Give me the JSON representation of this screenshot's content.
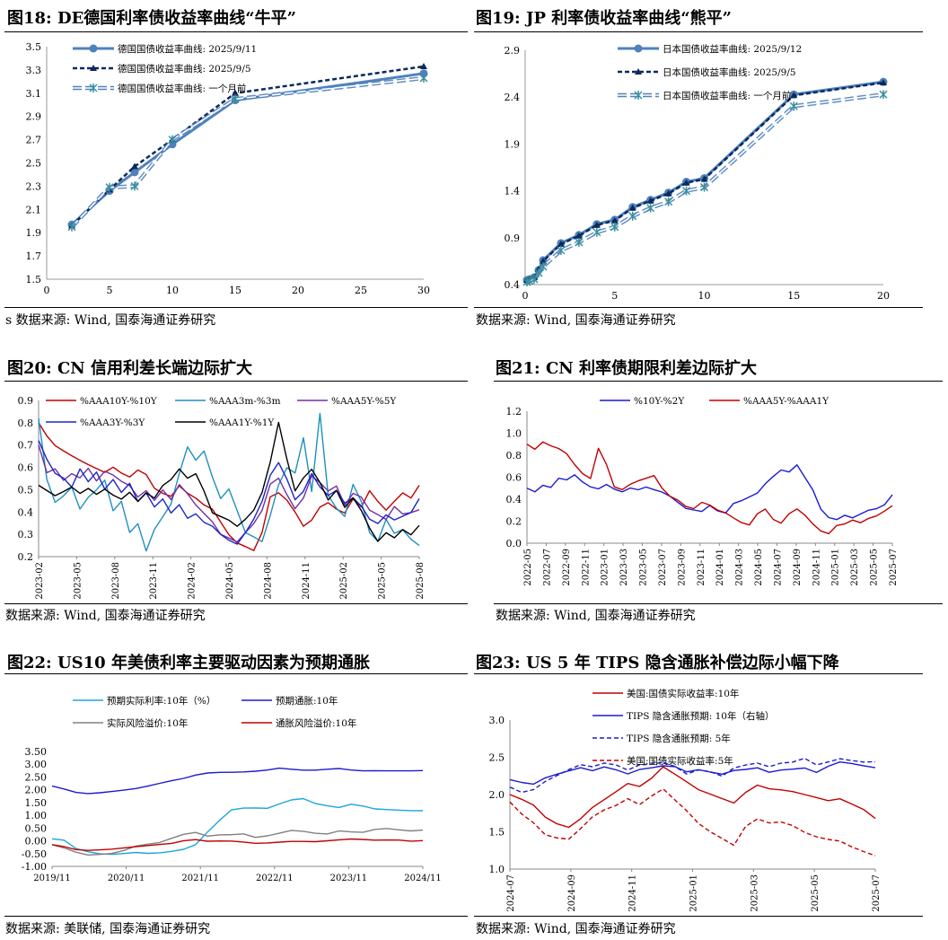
{
  "panels": {
    "fig18": {
      "title": "图18:  DE德国利率债收益率曲线“牛平”",
      "source": "s 数据来源:  Wind, 国泰海通证券研究"
    },
    "fig19": {
      "title": "图19:  JP 利率债收益率曲线“熊平”",
      "source": "数据来源:  Wind, 国泰海通证券研究"
    },
    "fig20": {
      "title": "图20:  CN 信用利差长端边际扩大",
      "source": "数据来源:  Wind, 国泰海通证券研究"
    },
    "fig21": {
      "title": "图21:  CN 利率债期限利差边际扩大",
      "source": "数据来源:  Wind, 国泰海通证券研究"
    },
    "fig22": {
      "title": "图22:  US10 年美债利率主要驱动因素为预期通胀",
      "source": "数据来源:  美联储, 国泰海通证券研究"
    },
    "fig23": {
      "title": "图23:  US 5 年 TIPS 隐含通胀补偿边际小幅下降",
      "source": "数据来源:  Wind, 国泰海通证券研究"
    }
  },
  "chart_data": [
    {
      "id": "fig18",
      "type": "line",
      "xlim": [
        0,
        30
      ],
      "ylim": [
        1.5,
        3.5
      ],
      "xticks": [
        "0",
        "5",
        "10",
        "15",
        "20",
        "25",
        "30"
      ],
      "yticks": [
        "1.5",
        "1.7",
        "1.9",
        "2.1",
        "2.3",
        "2.5",
        "2.7",
        "2.9",
        "3.1",
        "3.3",
        "3.5"
      ],
      "series": [
        {
          "name": "德国国债收益率曲线: 2025/9/11",
          "color": "#4f81bd",
          "x": [
            2,
            5,
            7,
            10,
            15,
            30
          ],
          "y": [
            1.97,
            2.26,
            2.42,
            2.66,
            3.04,
            3.27
          ]
        },
        {
          "name": "德国国债收益率曲线: 2025/9/5",
          "color": "#0b2a5b",
          "x": [
            2,
            5,
            7,
            10,
            15,
            30
          ],
          "y": [
            1.96,
            2.27,
            2.47,
            2.7,
            3.1,
            3.33
          ]
        },
        {
          "name": "德国国债收益率曲线: 一个月前",
          "color": "#4f81bd",
          "x": [
            2,
            5,
            7,
            10,
            15,
            30
          ],
          "y": [
            1.95,
            2.29,
            2.3,
            2.7,
            3.05,
            3.23
          ]
        }
      ]
    },
    {
      "id": "fig19",
      "type": "line",
      "xlim": [
        0,
        20
      ],
      "ylim": [
        0.4,
        3.0
      ],
      "xticks": [
        "0",
        "5",
        "10",
        "15",
        "20"
      ],
      "yticks": [
        "0.4",
        "0.9",
        "1.4",
        "1.9",
        "2.4",
        "2.9"
      ],
      "series": [
        {
          "name": "日本国债收益率曲线: 2025/9/12",
          "color": "#4f81bd",
          "x": [
            0.1,
            0.25,
            0.5,
            0.75,
            1,
            2,
            3,
            4,
            5,
            6,
            7,
            8,
            9,
            10,
            15,
            20
          ],
          "y": [
            0.45,
            0.46,
            0.48,
            0.56,
            0.67,
            0.86,
            0.95,
            1.07,
            1.12,
            1.26,
            1.34,
            1.42,
            1.54,
            1.58,
            2.51,
            2.65
          ]
        },
        {
          "name": "日本国债收益率曲线: 2025/9/5",
          "color": "#0b2a5b",
          "x": [
            0.1,
            0.25,
            0.5,
            0.75,
            1,
            2,
            3,
            4,
            5,
            6,
            7,
            8,
            9,
            10,
            15,
            20
          ],
          "y": [
            0.45,
            0.46,
            0.48,
            0.57,
            0.66,
            0.85,
            0.94,
            1.06,
            1.11,
            1.25,
            1.33,
            1.41,
            1.53,
            1.57,
            2.5,
            2.64
          ]
        },
        {
          "name": "日本国债收益率曲线: 一个月前",
          "color": "#4f81bd",
          "x": [
            0.1,
            0.25,
            0.5,
            0.75,
            1,
            2,
            3,
            4,
            5,
            6,
            7,
            8,
            9,
            10,
            15,
            20
          ],
          "y": [
            0.43,
            0.44,
            0.46,
            0.53,
            0.6,
            0.78,
            0.87,
            0.98,
            1.04,
            1.16,
            1.25,
            1.32,
            1.44,
            1.48,
            2.38,
            2.51
          ]
        }
      ]
    },
    {
      "id": "fig20",
      "type": "line",
      "ylim": [
        0.2,
        0.9
      ],
      "yticks": [
        "0.2",
        "0.3",
        "0.4",
        "0.5",
        "0.6",
        "0.7",
        "0.8",
        "0.9"
      ],
      "xticks": [
        "2023-02",
        "2023-05",
        "2023-08",
        "2023-11",
        "2024-02",
        "2024-05",
        "2024-08",
        "2024-11",
        "2025-02",
        "2025-05",
        "2025-08"
      ],
      "xstart": "2023-02",
      "xend": "2025-09",
      "series": [
        {
          "name": "%AAA10Y-%10Y",
          "color": "#c00000",
          "y": [
            0.8,
            0.74,
            0.7,
            0.68,
            0.66,
            0.64,
            0.62,
            0.6,
            0.58,
            0.6,
            0.57,
            0.55,
            0.58,
            0.56,
            0.5,
            0.48,
            0.47,
            0.52,
            0.49,
            0.47,
            0.44,
            0.42,
            0.36,
            0.3,
            0.26,
            0.24,
            0.22,
            0.3,
            0.46,
            0.48,
            0.45,
            0.4,
            0.34,
            0.37,
            0.43,
            0.45,
            0.42,
            0.4,
            0.46,
            0.42,
            0.49,
            0.44,
            0.4,
            0.44,
            0.48,
            0.46,
            0.52
          ]
        },
        {
          "name": "%AAA3m-%3m",
          "color": "#1f8fc0",
          "y": [
            0.82,
            0.55,
            0.45,
            0.48,
            0.52,
            0.42,
            0.47,
            0.5,
            0.54,
            0.4,
            0.44,
            0.3,
            0.34,
            0.22,
            0.32,
            0.38,
            0.44,
            0.58,
            0.7,
            0.64,
            0.68,
            0.56,
            0.46,
            0.5,
            0.4,
            0.3,
            0.28,
            0.26,
            0.38,
            0.52,
            0.6,
            0.58,
            0.74,
            0.5,
            0.85,
            0.48,
            0.42,
            0.38,
            0.52,
            0.44,
            0.3,
            0.26,
            0.36,
            0.3,
            0.32,
            0.28,
            0.25
          ]
        },
        {
          "name": "%AAA5Y-%5Y",
          "color": "#7030a0",
          "y": [
            0.7,
            0.58,
            0.6,
            0.55,
            0.58,
            0.56,
            0.6,
            0.54,
            0.58,
            0.56,
            0.53,
            0.51,
            0.46,
            0.49,
            0.45,
            0.5,
            0.46,
            0.53,
            0.49,
            0.44,
            0.4,
            0.36,
            0.3,
            0.28,
            0.26,
            0.3,
            0.34,
            0.4,
            0.52,
            0.55,
            0.48,
            0.42,
            0.47,
            0.57,
            0.54,
            0.5,
            0.52,
            0.43,
            0.48,
            0.46,
            0.4,
            0.38,
            0.36,
            0.42,
            0.39,
            0.4,
            0.41
          ]
        },
        {
          "name": "%AAA3Y-%3Y",
          "color": "#1d24c8",
          "y": [
            0.72,
            0.64,
            0.58,
            0.56,
            0.52,
            0.6,
            0.54,
            0.58,
            0.5,
            0.54,
            0.48,
            0.52,
            0.44,
            0.48,
            0.42,
            0.46,
            0.4,
            0.44,
            0.38,
            0.4,
            0.36,
            0.34,
            0.3,
            0.27,
            0.25,
            0.3,
            0.36,
            0.44,
            0.56,
            0.62,
            0.55,
            0.46,
            0.5,
            0.58,
            0.52,
            0.48,
            0.5,
            0.44,
            0.46,
            0.42,
            0.36,
            0.34,
            0.38,
            0.36,
            0.38,
            0.4,
            0.46
          ]
        },
        {
          "name": "%AAA1Y-%1Y",
          "color": "#000000",
          "y": [
            0.52,
            0.5,
            0.48,
            0.5,
            0.52,
            0.49,
            0.51,
            0.48,
            0.5,
            0.47,
            0.45,
            0.48,
            0.44,
            0.48,
            0.46,
            0.52,
            0.55,
            0.6,
            0.56,
            0.58,
            0.5,
            0.4,
            0.38,
            0.36,
            0.33,
            0.36,
            0.4,
            0.48,
            0.62,
            0.8,
            0.64,
            0.5,
            0.56,
            0.6,
            0.54,
            0.46,
            0.5,
            0.42,
            0.46,
            0.4,
            0.32,
            0.26,
            0.3,
            0.28,
            0.32,
            0.3,
            0.34
          ]
        }
      ]
    },
    {
      "id": "fig21",
      "type": "line",
      "ylim": [
        0.0,
        1.2
      ],
      "yticks": [
        "0.0",
        "0.2",
        "0.4",
        "0.6",
        "0.8",
        "1.0",
        "1.2"
      ],
      "xticks": [
        "2022-05",
        "2022-07",
        "2022-09",
        "2022-11",
        "2023-01",
        "2023-03",
        "2023-05",
        "2023-07",
        "2023-09",
        "2023-11",
        "2024-01",
        "2024-03",
        "2024-05",
        "2024-07",
        "2024-09",
        "2024-11",
        "2025-01",
        "2025-03",
        "2025-05",
        "2025-07"
      ],
      "xstart": "2022-05",
      "xend": "2025-09",
      "series": [
        {
          "name": "%10Y-%2Y",
          "color": "#1a1ad6",
          "y": [
            0.5,
            0.48,
            0.54,
            0.52,
            0.6,
            0.58,
            0.62,
            0.55,
            0.5,
            0.48,
            0.52,
            0.48,
            0.46,
            0.5,
            0.49,
            0.52,
            0.5,
            0.48,
            0.44,
            0.38,
            0.32,
            0.3,
            0.28,
            0.33,
            0.28,
            0.26,
            0.35,
            0.38,
            0.42,
            0.46,
            0.55,
            0.62,
            0.68,
            0.66,
            0.72,
            0.6,
            0.48,
            0.3,
            0.22,
            0.2,
            0.24,
            0.22,
            0.26,
            0.3,
            0.32,
            0.36,
            0.44
          ]
        },
        {
          "name": "%AAA5Y-%AAA1Y",
          "color": "#c00000",
          "y": [
            0.9,
            0.86,
            0.92,
            0.88,
            0.85,
            0.8,
            0.7,
            0.62,
            0.58,
            0.86,
            0.72,
            0.52,
            0.5,
            0.55,
            0.58,
            0.6,
            0.62,
            0.5,
            0.42,
            0.38,
            0.32,
            0.3,
            0.36,
            0.34,
            0.3,
            0.28,
            0.24,
            0.2,
            0.18,
            0.28,
            0.32,
            0.22,
            0.18,
            0.26,
            0.3,
            0.24,
            0.16,
            0.1,
            0.08,
            0.16,
            0.18,
            0.22,
            0.2,
            0.24,
            0.26,
            0.3,
            0.34
          ]
        }
      ]
    },
    {
      "id": "fig22",
      "type": "line",
      "ylim": [
        -1.0,
        3.5
      ],
      "yticks": [
        "-1.00",
        "-0.50",
        "0.00",
        "0.50",
        "1.00",
        "1.50",
        "2.00",
        "2.50",
        "3.00",
        "3.50"
      ],
      "xticks": [
        "2019/11",
        "2020/11",
        "2021/11",
        "2022/11",
        "2023/11",
        "2024/11"
      ],
      "xstart": "2019/11",
      "xend": "2025/09",
      "series": [
        {
          "name": "预期实际利率:10年（%）",
          "color": "#1aa7d8",
          "y": [
            0.08,
            0.05,
            -0.3,
            -0.45,
            -0.55,
            -0.58,
            -0.55,
            -0.5,
            -0.52,
            -0.48,
            -0.4,
            -0.3,
            -0.1,
            0.4,
            0.85,
            1.25,
            1.3,
            1.28,
            1.25,
            1.4,
            1.55,
            1.6,
            1.42,
            1.35,
            1.3,
            1.45,
            1.4,
            1.3,
            1.28,
            1.25,
            1.22,
            1.18
          ]
        },
        {
          "name": "预期通胀:10年",
          "color": "#1b1bd0",
          "y": [
            2.15,
            2.08,
            1.95,
            1.9,
            1.92,
            1.95,
            1.98,
            2.02,
            2.1,
            2.2,
            2.3,
            2.4,
            2.55,
            2.65,
            2.7,
            2.72,
            2.75,
            2.78,
            2.82,
            2.88,
            2.82,
            2.76,
            2.74,
            2.76,
            2.78,
            2.72,
            2.7,
            2.72,
            2.74,
            2.76,
            2.78,
            2.75
          ]
        },
        {
          "name": "实际风险溢价:10年",
          "color": "#808080",
          "y": [
            -0.15,
            -0.25,
            -0.4,
            -0.5,
            -0.48,
            -0.45,
            -0.35,
            -0.2,
            -0.15,
            -0.1,
            0.05,
            0.2,
            0.28,
            0.15,
            0.22,
            0.25,
            0.3,
            0.18,
            0.25,
            0.35,
            0.45,
            0.4,
            0.3,
            0.25,
            0.35,
            0.3,
            0.28,
            0.4,
            0.45,
            0.42,
            0.4,
            0.42
          ]
        },
        {
          "name": "通胀风险溢价:10年",
          "color": "#c00000",
          "y": [
            -0.15,
            -0.2,
            -0.3,
            -0.32,
            -0.3,
            -0.28,
            -0.25,
            -0.22,
            -0.2,
            -0.18,
            -0.15,
            -0.05,
            0.0,
            -0.05,
            -0.02,
            0.0,
            -0.02,
            -0.05,
            -0.03,
            0.0,
            0.02,
            0.0,
            -0.03,
            -0.02,
            0.0,
            0.02,
            0.0,
            -0.02,
            0.0,
            0.02,
            0.0,
            0.01
          ]
        }
      ]
    },
    {
      "id": "fig23",
      "type": "line",
      "ylim": [
        1.0,
        3.0
      ],
      "yticks": [
        "1.0",
        "1.5",
        "2.0",
        "2.5",
        "3.0"
      ],
      "xticks": [
        "2024-07",
        "2024-09",
        "2024-11",
        "2025-01",
        "2025-03",
        "2025-05",
        "2025-07"
      ],
      "xstart": "2024-07",
      "xend": "2025-09",
      "series": [
        {
          "name": "美国:国债实际收益率:10年",
          "color": "#c00000",
          "dash": false,
          "y": [
            2.0,
            1.92,
            1.85,
            1.7,
            1.62,
            1.58,
            1.7,
            1.85,
            1.95,
            2.05,
            2.15,
            2.1,
            2.2,
            2.35,
            2.25,
            2.15,
            2.05,
            2.0,
            1.95,
            1.9,
            2.05,
            2.15,
            2.1,
            2.08,
            2.05,
            2.0,
            1.95,
            1.9,
            1.92,
            1.85,
            1.78,
            1.68
          ]
        },
        {
          "name": "TIPS 隐含通胀预期: 10年（右轴）",
          "color": "#1b1bd0",
          "dash": false,
          "y": [
            2.2,
            2.15,
            2.12,
            2.2,
            2.25,
            2.3,
            2.35,
            2.32,
            2.38,
            2.35,
            2.3,
            2.36,
            2.38,
            2.4,
            2.38,
            2.3,
            2.32,
            2.28,
            2.25,
            2.3,
            2.32,
            2.35,
            2.3,
            2.34,
            2.36,
            2.38,
            2.32,
            2.4,
            2.45,
            2.42,
            2.38,
            2.36
          ]
        },
        {
          "name": "TIPS 隐含通胀预期: 5年",
          "color": "#1b1bd0",
          "dash": true,
          "y": [
            2.1,
            2.05,
            2.08,
            2.18,
            2.25,
            2.32,
            2.38,
            2.35,
            2.4,
            2.38,
            2.32,
            2.4,
            2.42,
            2.45,
            2.4,
            2.3,
            2.35,
            2.32,
            2.25,
            2.35,
            2.38,
            2.4,
            2.35,
            2.4,
            2.42,
            2.48,
            2.4,
            2.45,
            2.5,
            2.48,
            2.46,
            2.44
          ]
        },
        {
          "name": "美国:国债实际收益率:5年",
          "color": "#c00000",
          "dash": true,
          "y": [
            1.9,
            1.75,
            1.62,
            1.45,
            1.4,
            1.38,
            1.52,
            1.68,
            1.78,
            1.85,
            1.95,
            1.88,
            2.0,
            2.1,
            1.95,
            1.8,
            1.62,
            1.5,
            1.4,
            1.3,
            1.55,
            1.65,
            1.6,
            1.62,
            1.58,
            1.5,
            1.45,
            1.42,
            1.4,
            1.32,
            1.25,
            1.18
          ]
        }
      ]
    }
  ]
}
